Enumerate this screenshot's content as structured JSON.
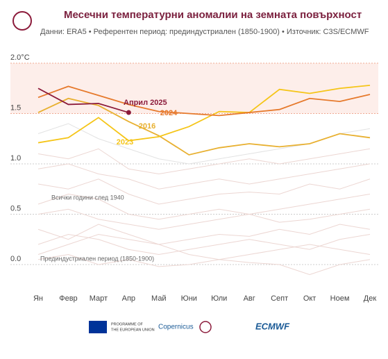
{
  "chart_data": {
    "type": "line",
    "title": "Месечни температурни аномалии на земната повърхност",
    "subtitle": "Данни: ERA5 • Референтен период: прединдустриален (1850-1900) • Източник: C3S/ECMWF",
    "categories": [
      "Ян",
      "Февр",
      "Март",
      "Апр",
      "Май",
      "Юни",
      "Юли",
      "Авг",
      "Септ",
      "Окт",
      "Ноем",
      "Дек"
    ],
    "ylim": [
      -0.2,
      2.0
    ],
    "yticks": [
      {
        "value": 0,
        "label": "0.0"
      },
      0.5,
      {
        "value": 1,
        "label": "1.0"
      },
      1.5,
      {
        "value": 2,
        "label": "2.0°C"
      }
    ],
    "band": [
      1.5,
      2.0
    ],
    "background_series": [
      {
        "color": "#ecd6d2",
        "values": [
          0.05,
          0.1,
          0.0,
          0.05,
          -0.02,
          0.0,
          0.05,
          0.02,
          0.0,
          -0.1,
          0.0,
          0.05
        ]
      },
      {
        "color": "#ecd6d2",
        "values": [
          0.2,
          0.3,
          0.25,
          0.15,
          0.1,
          0.15,
          0.2,
          0.25,
          0.2,
          0.15,
          0.25,
          0.3
        ]
      },
      {
        "color": "#ecd6d2",
        "values": [
          0.35,
          0.25,
          0.4,
          0.3,
          0.2,
          0.25,
          0.3,
          0.28,
          0.35,
          0.3,
          0.4,
          0.35
        ]
      },
      {
        "color": "#ecd6d2",
        "values": [
          0.5,
          0.55,
          0.45,
          0.4,
          0.35,
          0.4,
          0.45,
          0.5,
          0.42,
          0.45,
          0.5,
          0.55
        ]
      },
      {
        "color": "#ecd6d2",
        "values": [
          0.6,
          0.7,
          0.65,
          0.5,
          0.45,
          0.5,
          0.55,
          0.5,
          0.55,
          0.6,
          0.65,
          0.7
        ]
      },
      {
        "color": "#ecd6d2",
        "values": [
          0.8,
          0.75,
          0.85,
          0.7,
          0.6,
          0.65,
          0.7,
          0.72,
          0.7,
          0.8,
          0.75,
          0.85
        ]
      },
      {
        "color": "#ecd6d2",
        "values": [
          0.95,
          1.0,
          0.9,
          0.85,
          0.75,
          0.8,
          0.85,
          0.8,
          0.85,
          0.9,
          0.95,
          1.0
        ]
      },
      {
        "color": "#ecd6d2",
        "values": [
          1.1,
          1.05,
          1.15,
          0.95,
          0.9,
          0.95,
          1.0,
          1.05,
          1.0,
          1.05,
          1.1,
          1.15
        ]
      },
      {
        "color": "#e2e2e2",
        "values": [
          1.3,
          1.4,
          1.25,
          1.15,
          1.05,
          1.0,
          1.05,
          1.1,
          1.15,
          1.2,
          1.3,
          1.35
        ]
      },
      {
        "color": "#ecd6d2",
        "values": [
          0.1,
          0.2,
          0.3,
          0.25,
          0.2,
          0.1,
          0.05,
          0.1,
          0.15,
          0.2,
          0.15,
          0.1
        ]
      }
    ],
    "series": [
      {
        "name": "2016",
        "color": "#e8b030",
        "values": [
          1.51,
          1.65,
          1.58,
          1.42,
          1.28,
          1.09,
          1.16,
          1.2,
          1.17,
          1.2,
          1.3,
          1.26
        ]
      },
      {
        "name": "2023",
        "color": "#f5c518",
        "values": [
          1.21,
          1.26,
          1.46,
          1.23,
          1.27,
          1.37,
          1.52,
          1.51,
          1.74,
          1.7,
          1.75,
          1.78
        ]
      },
      {
        "name": "2024",
        "color": "#e6792b",
        "values": [
          1.66,
          1.77,
          1.68,
          1.59,
          1.52,
          1.5,
          1.48,
          1.51,
          1.54,
          1.65,
          1.62,
          1.69
        ]
      },
      {
        "name": "Април 2025",
        "color": "#8b1a3a",
        "values": [
          1.75,
          1.59,
          1.6,
          1.51,
          null,
          null,
          null,
          null,
          null,
          null,
          null,
          null
        ]
      }
    ],
    "annotations": [
      "Всички години след 1940",
      "Прединдустриален период (1850-1900)"
    ],
    "footer": [
      "PROGRAMME OF",
      "THE EUROPEAN UNION",
      "Copernicus",
      "ECMWF"
    ]
  }
}
